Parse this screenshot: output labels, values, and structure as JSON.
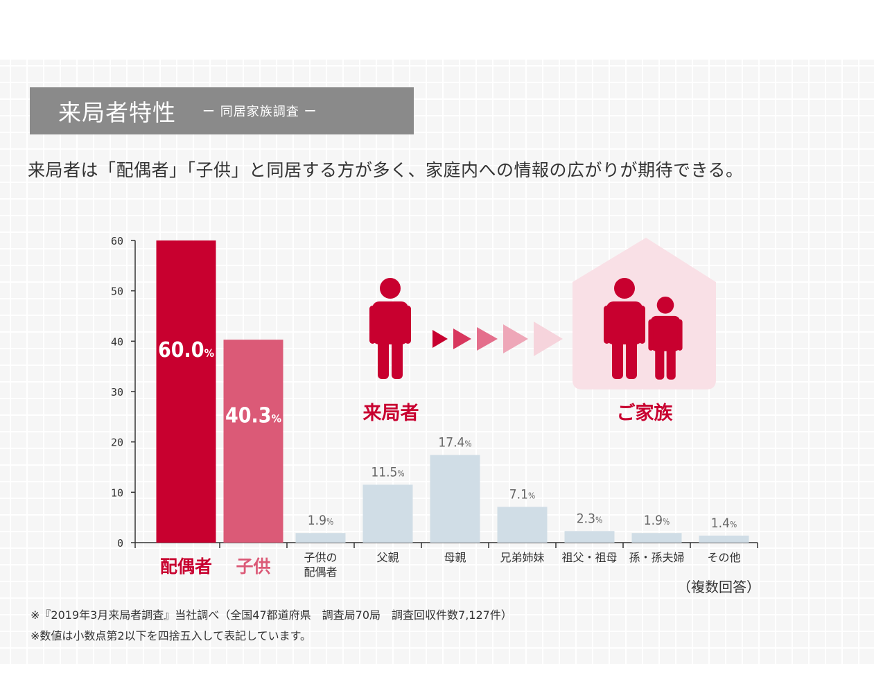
{
  "header": {
    "title": "来局者特性",
    "subtitle": "ー 同居家族調査 ー"
  },
  "lead": "来局者は「配偶者」「子供」と同居する方が多く、家庭内への情報の広がりが期待できる。",
  "illustration": {
    "visitor_label": "来局者",
    "family_label": "ご家族",
    "accent_color": "#c8002f",
    "house_color": "#f9e0e6",
    "arrow_colors": [
      "#c8002f",
      "#d8375e",
      "#e46f8c",
      "#eea7b8",
      "#f6d4dc"
    ],
    "icons": [
      "person-icon",
      "arrow-chevron-icon",
      "house-icon",
      "family-icon"
    ]
  },
  "multi_answer_note": "（複数回答）",
  "notes": [
    "※『2019年3月来局者調査』当社調べ（全国47都道府県　調査局70局　調査回収件数7,127件）",
    "※数値は小数点第2以下を四捨五入して表記しています。"
  ],
  "chart_data": {
    "type": "bar",
    "categories": [
      "配偶者",
      "子供",
      "子供の\n配偶者",
      "父親",
      "母親",
      "兄弟姉妹",
      "祖父・祖母",
      "孫・孫夫婦",
      "その他"
    ],
    "values": [
      60.0,
      40.3,
      1.9,
      11.5,
      17.4,
      7.1,
      2.3,
      1.9,
      1.4
    ],
    "value_labels": [
      "60.0",
      "40.3",
      "1.9",
      "11.5",
      "17.4",
      "7.1",
      "2.3",
      "1.9",
      "1.4"
    ],
    "unit": "%",
    "ylim": [
      0,
      60
    ],
    "yticks": [
      0,
      10,
      20,
      30,
      40,
      50,
      60
    ],
    "colors": [
      "#c8002f",
      "#db5a77",
      "#d0dde6",
      "#d0dde6",
      "#d0dde6",
      "#d0dde6",
      "#d0dde6",
      "#d0dde6",
      "#d0dde6"
    ],
    "highlight_label_colors": [
      "#c8002f",
      "#db5a77"
    ],
    "value_label_color_inside": "#ffffff",
    "value_label_color_outside": "#666666",
    "grid": false
  }
}
